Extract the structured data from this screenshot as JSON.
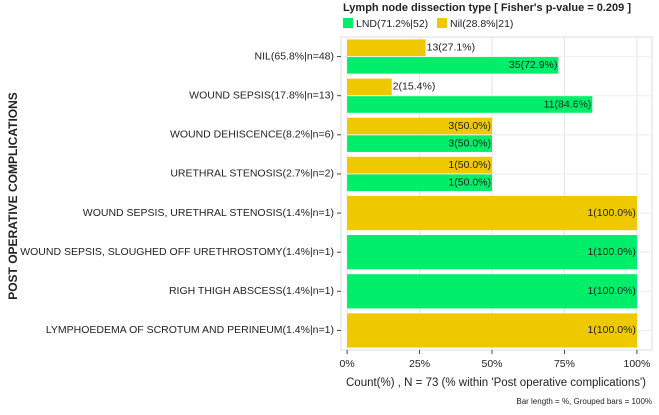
{
  "chart_data": {
    "type": "bar",
    "orientation": "horizontal",
    "title": "Lymph node dissection type [ Fisher's p-value = 0.209 ]",
    "ylabel": "POST OPERATIVE COMPLICATIONS",
    "xlabel": "Count(%) , N = 73 (% within 'Post operative complications')",
    "caption": "Bar length = %, Grouped bars = 100%",
    "categories": [
      "NIL(65.8%|n=48)",
      "WOUND SEPSIS(17.8%|n=13)",
      "WOUND DEHISCENCE(8.2%|n=6)",
      "URETHRAL STENOSIS(2.7%|n=2)",
      "WOUND SEPSIS, URETHRAL STENOSIS(1.4%|n=1)",
      "WOUND SEPSIS, SLOUGHED OFF URETHROSTOMY(1.4%|n=1)",
      "RIGH THIGH ABSCESS(1.4%|n=1)",
      "LYMPHOEDEMA OF SCROTUM AND PERINEUM(1.4%|n=1)"
    ],
    "series": [
      {
        "name": "LND(71.2%|52)",
        "color": "#00ee6a",
        "values": [
          72.9,
          84.6,
          50.0,
          50.0,
          null,
          100.0,
          100.0,
          null
        ],
        "value_labels": [
          "35(72.9%)",
          "11(84.6%)",
          "3(50.0%)",
          "1(50.0%)",
          null,
          "1(100.0%)",
          "1(100.0%)",
          null
        ]
      },
      {
        "name": "Nil(28.8%|21)",
        "color": "#eec900",
        "values": [
          27.1,
          15.4,
          50.0,
          50.0,
          100.0,
          null,
          null,
          100.0
        ],
        "value_labels": [
          "13(27.1%)",
          "2(15.4%)",
          "3(50.0%)",
          "1(50.0%)",
          "1(100.0%)",
          null,
          null,
          "1(100.0%)"
        ]
      }
    ],
    "xlim": [
      -2.1,
      105.2
    ],
    "xticks": [
      {
        "value": 0,
        "label": "0%"
      },
      {
        "value": 25,
        "label": "25%"
      },
      {
        "value": 50,
        "label": "50%"
      },
      {
        "value": 75,
        "label": "75%"
      },
      {
        "value": 100,
        "label": "100%"
      }
    ],
    "grid": true
  }
}
